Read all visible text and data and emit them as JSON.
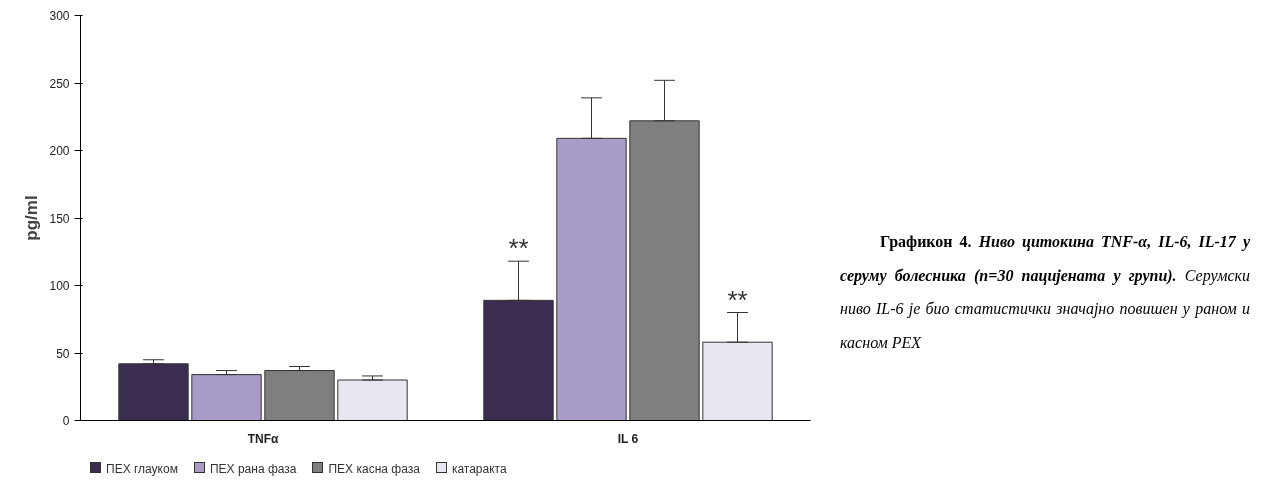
{
  "chart_data": {
    "type": "bar",
    "ylabel": "pg/ml",
    "categories": [
      "TNFα",
      "IL 6"
    ],
    "series": [
      {
        "name": "ПЕХ глауком",
        "color": "#3b2d50",
        "values": [
          42,
          89
        ],
        "errors": [
          [
            42,
            45
          ],
          [
            89,
            118
          ]
        ]
      },
      {
        "name": "ПЕХ рана фаза",
        "color": "#a99cc9",
        "values": [
          34,
          209
        ],
        "errors": [
          [
            34,
            37
          ],
          [
            209,
            239
          ]
        ]
      },
      {
        "name": "ПЕХ касна фаза",
        "color": "#7f7f7f",
        "values": [
          37,
          222
        ],
        "errors": [
          [
            37,
            40
          ],
          [
            222,
            252
          ]
        ]
      },
      {
        "name": "катаракта",
        "color": "#e9e5f1",
        "values": [
          30,
          58
        ],
        "errors": [
          [
            30,
            33
          ],
          [
            58,
            80
          ]
        ]
      }
    ],
    "ylim": [
      0,
      300
    ],
    "yticks": [
      0,
      50,
      100,
      150,
      200,
      250,
      300
    ],
    "grid": false,
    "legend": "bottom",
    "annotations": [
      "**",
      "**",
      "Графикон 4.",
      "Ниво цитокина TNF-α, IL-6, IL-17 у серуму болесника (n=30 пацијената у групи).",
      "Серумски ниво IL-6 је био статистички значајно повишен у раном и касном PEX"
    ]
  }
}
